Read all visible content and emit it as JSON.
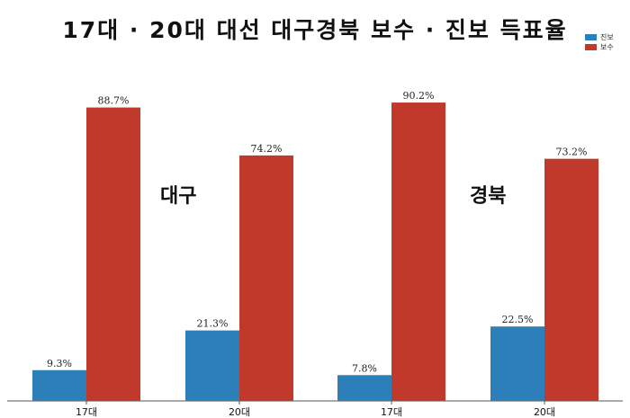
{
  "chart_data": {
    "type": "bar",
    "title": "17대 · 20대 대선 대구경북 보수 · 진보 득표율",
    "xlabel": "",
    "ylabel": "",
    "ylim": [
      0,
      100
    ],
    "grid": false,
    "legend_position": "top-right",
    "groups": [
      "대구",
      "경북"
    ],
    "categories": [
      "17대",
      "20대",
      "17대",
      "20대"
    ],
    "series": [
      {
        "name": "진보",
        "color": "#2c7fb8",
        "values": [
          9.3,
          21.3,
          7.8,
          22.5
        ],
        "labels": [
          "9.3%",
          "21.3%",
          "7.8%",
          "22.5%"
        ]
      },
      {
        "name": "보수",
        "color": "#c0392b",
        "values": [
          88.7,
          74.2,
          90.2,
          73.2
        ],
        "labels": [
          "88.7%",
          "74.2%",
          "90.2%",
          "73.2%"
        ]
      }
    ]
  }
}
